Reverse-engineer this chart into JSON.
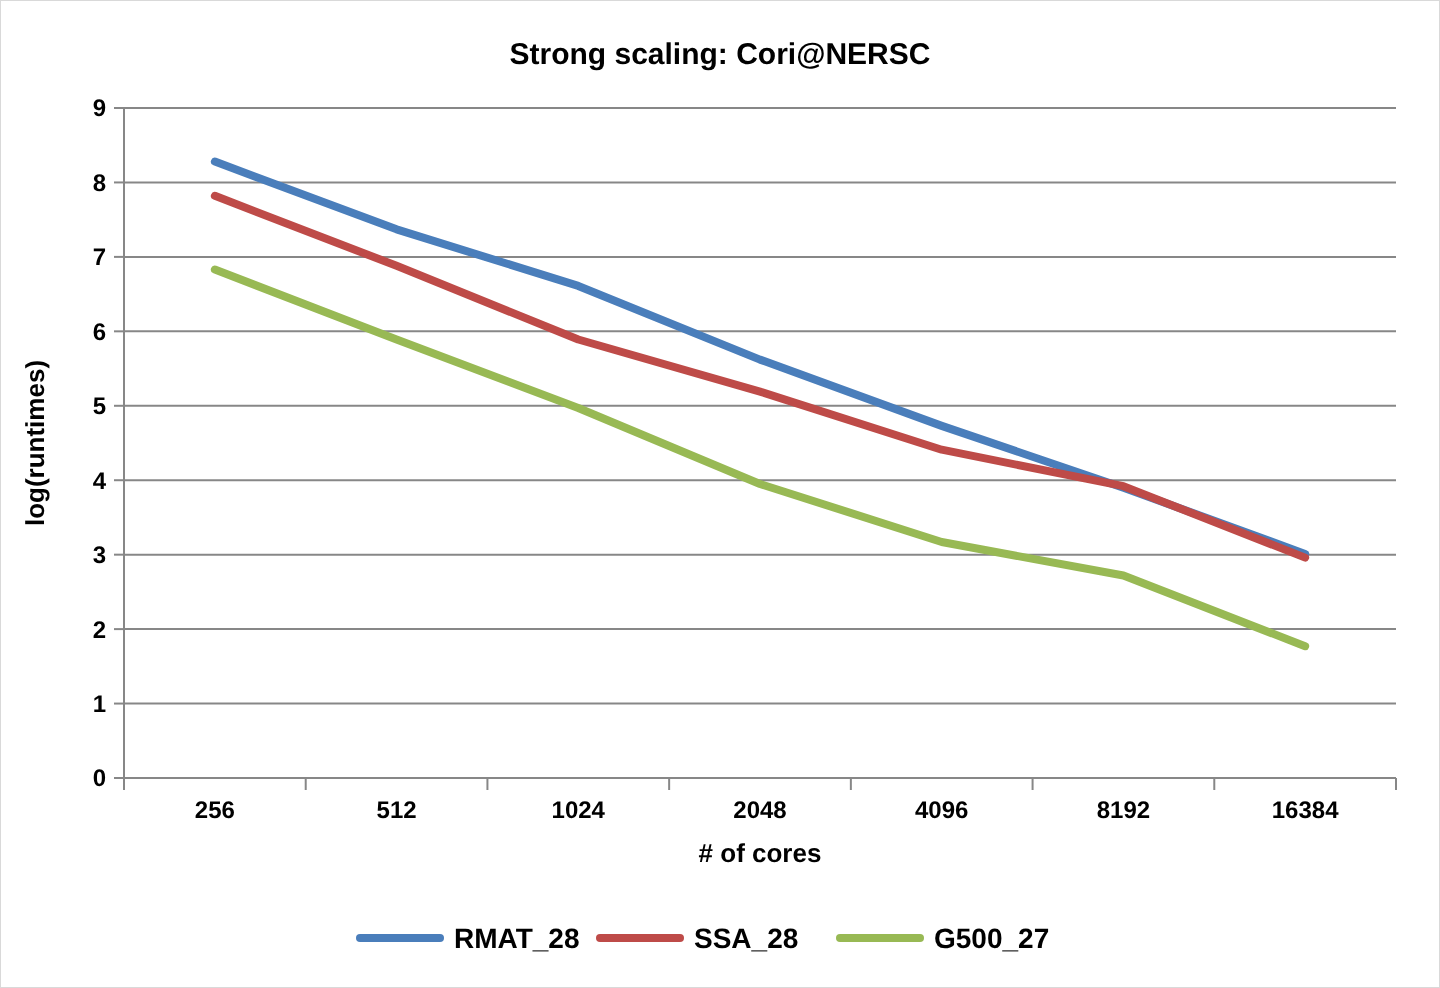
{
  "chart_data": {
    "type": "line",
    "title": "Strong scaling: Cori@NERSC",
    "xlabel": "# of cores",
    "ylabel": "log(runtimes)",
    "categories": [
      "256",
      "512",
      "1024",
      "2048",
      "4096",
      "8192",
      "16384"
    ],
    "series": [
      {
        "name": "RMAT_28",
        "color": "#4a7ebb",
        "values": [
          8.28,
          7.37,
          6.61,
          5.62,
          4.73,
          3.9,
          3.01
        ]
      },
      {
        "name": "SSA_28",
        "color": "#be4b48",
        "values": [
          7.82,
          6.88,
          5.89,
          5.19,
          4.41,
          3.92,
          2.96
        ]
      },
      {
        "name": "G500_27",
        "color": "#98b954",
        "values": [
          6.83,
          5.89,
          4.97,
          3.95,
          3.17,
          2.72,
          1.77
        ]
      }
    ],
    "ylim": [
      0,
      9
    ],
    "yticks": [
      0,
      1,
      2,
      3,
      4,
      5,
      6,
      7,
      8,
      9
    ],
    "grid": "y",
    "legend": "bottom",
    "marker": "none",
    "line_style": "solid"
  }
}
